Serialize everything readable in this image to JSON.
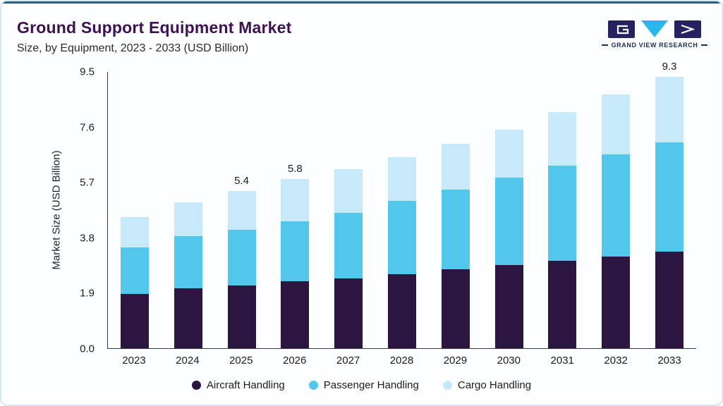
{
  "header": {
    "title": "Ground Support Equipment Market",
    "subtitle": "Size, by Equipment, 2023 - 2033 (USD Billion)",
    "logo_text": "GRAND VIEW RESEARCH"
  },
  "chart_data": {
    "type": "bar",
    "stacked": true,
    "title": "Ground Support Equipment Market Size, by Equipment, 2023 - 2033 (USD Billion)",
    "ylabel": "Market Size (USD Billion)",
    "xlabel": "",
    "categories": [
      "2023",
      "2024",
      "2025",
      "2026",
      "2027",
      "2028",
      "2029",
      "2030",
      "2031",
      "2032",
      "2033"
    ],
    "ytick_labels": [
      "0.0",
      "1.9",
      "3.8",
      "5.7",
      "7.6",
      "9.5"
    ],
    "ylim": [
      0,
      9.5
    ],
    "grid": false,
    "legend_position": "bottom",
    "series": [
      {
        "name": "Aircraft Handling",
        "color": "#2b1642",
        "values": [
          1.85,
          2.05,
          2.15,
          2.3,
          2.4,
          2.55,
          2.7,
          2.85,
          3.0,
          3.15,
          3.3
        ]
      },
      {
        "name": "Passenger Handling",
        "color": "#53c6ec",
        "values": [
          1.6,
          1.8,
          1.9,
          2.05,
          2.25,
          2.5,
          2.75,
          3.0,
          3.25,
          3.5,
          3.75
        ]
      },
      {
        "name": "Cargo Handling",
        "color": "#c8e9f9",
        "values": [
          1.05,
          1.15,
          1.35,
          1.45,
          1.5,
          1.5,
          1.55,
          1.65,
          1.85,
          2.05,
          2.25
        ]
      }
    ],
    "totals": [
      4.5,
      5.0,
      5.4,
      5.8,
      6.15,
      6.55,
      7.0,
      7.5,
      8.1,
      8.7,
      9.3
    ],
    "annotations": [
      {
        "category": "2025",
        "text": "5.4"
      },
      {
        "category": "2026",
        "text": "5.8"
      },
      {
        "category": "2033",
        "text": "9.3"
      }
    ]
  },
  "colors": {
    "title": "#3e1151",
    "card_border": "#d6eaf6",
    "top_accent": "#2c5f82",
    "axis": "#3a3a3a",
    "logo_dark": "#262262",
    "logo_cyan": "#2ab7e9",
    "logo_text": "#1c2e54"
  }
}
